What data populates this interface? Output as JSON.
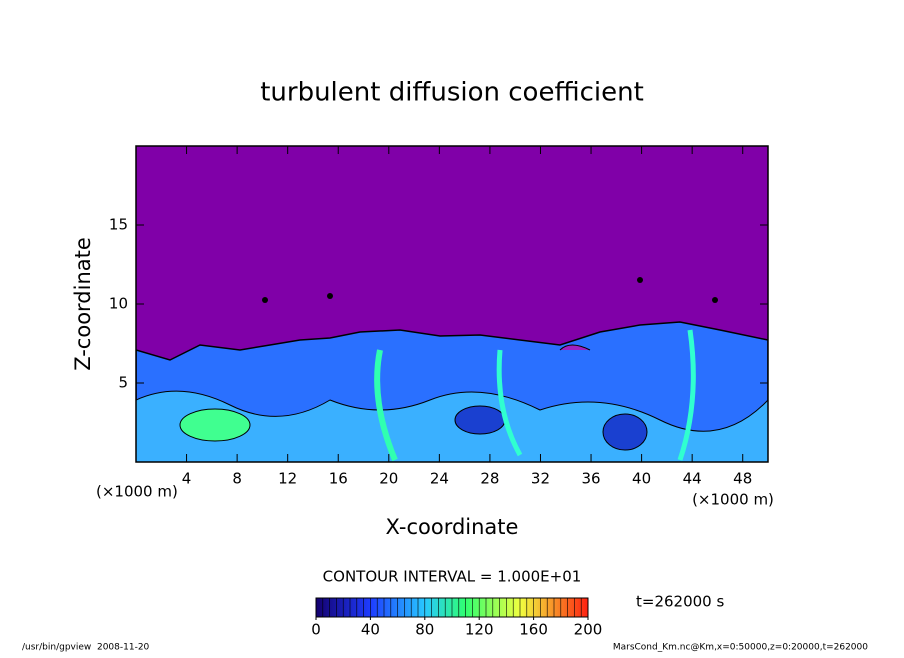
{
  "chart_data": {
    "type": "contour",
    "title": "turbulent diffusion coefficient",
    "x_label": "X-coordinate",
    "y_label": "Z-coordinate",
    "x_unit_label": "(×1000 m)",
    "y_unit_label": "(×1000 m)",
    "xlim": [
      0,
      50
    ],
    "ylim": [
      0,
      20
    ],
    "xticks": [
      4,
      8,
      12,
      16,
      20,
      24,
      28,
      32,
      36,
      40,
      44,
      48
    ],
    "yticks": [
      5,
      10,
      15
    ],
    "contour_interval_label": "CONTOUR INTERVAL = 1.000E+01",
    "colorbar": {
      "lim": [
        0,
        200
      ],
      "ticks": [
        0,
        40,
        80,
        120,
        160,
        200
      ]
    },
    "time_label": "t=262000 s"
  },
  "footer": {
    "left": "/usr/bin/gpview  2008-11-20",
    "right": "MarsCond_Km.nc@Km,x=0:50000,z=0:20000,t=262000"
  }
}
